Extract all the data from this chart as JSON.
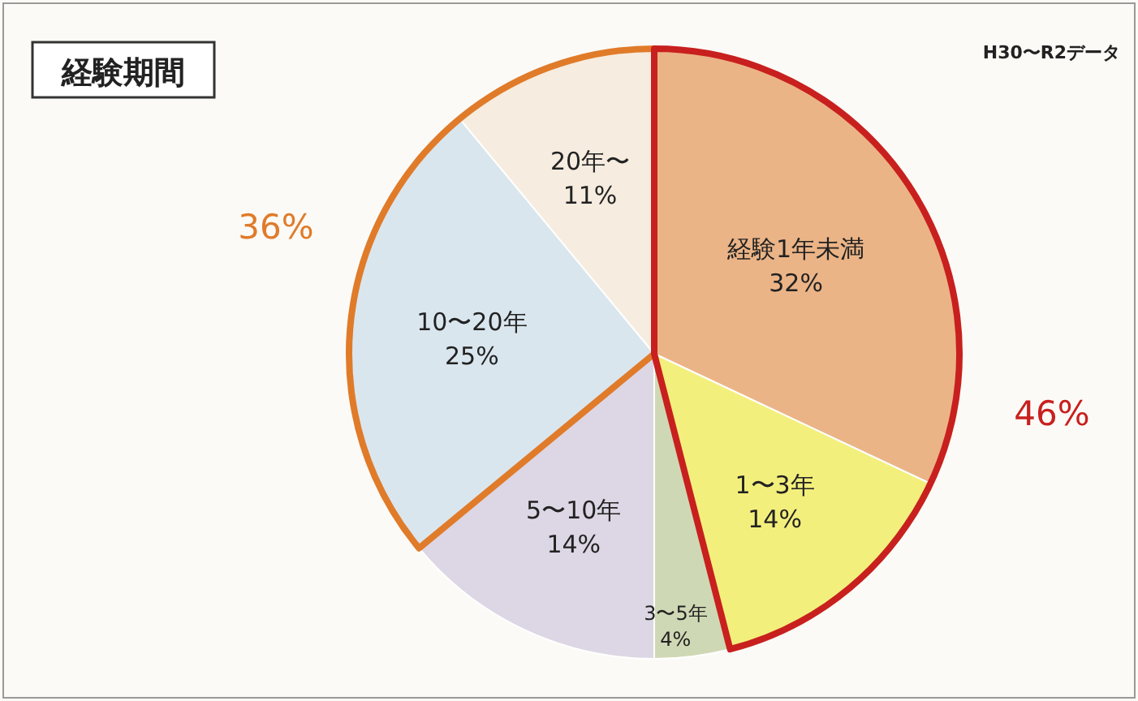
{
  "chart_data": {
    "type": "pie",
    "title": "経験期間",
    "subtitle": "H30〜R2データ",
    "categories": [
      "経験1年未満",
      "1〜3年",
      "3〜5年",
      "5〜10年",
      "10〜20年",
      "20年〜"
    ],
    "values": [
      32,
      14,
      4,
      14,
      25,
      11
    ],
    "colors": [
      "#ebb487",
      "#f3ef7c",
      "#cfd8b4",
      "#ddd6e4",
      "#dae6ee",
      "#f6ecdf"
    ],
    "value_labels": [
      "32%",
      "14%",
      "4%",
      "14%",
      "25%",
      "11%"
    ],
    "annotations": [
      "36%",
      "46%"
    ]
  }
}
